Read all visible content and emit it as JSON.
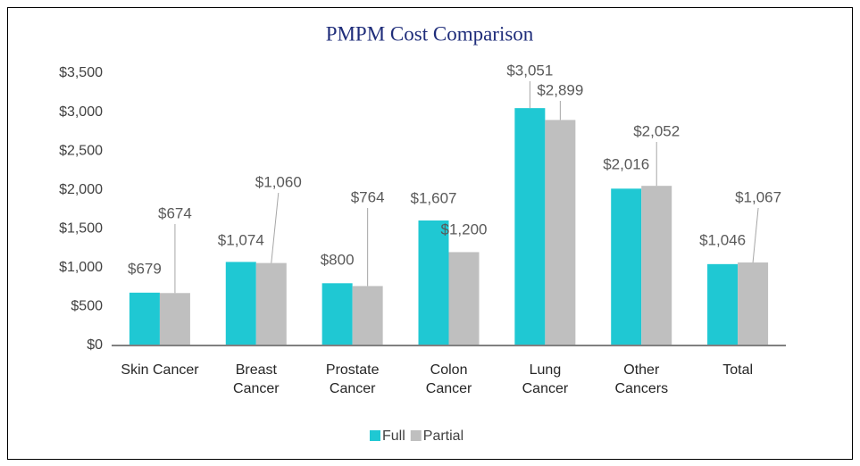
{
  "chart_data": {
    "type": "bar",
    "title": "PMPM Cost Comparison",
    "categories": [
      "Skin Cancer",
      "Breast\nCancer",
      "Prostate\nCancer",
      "Colon\nCancer",
      "Lung\nCancer",
      "Other\nCancers",
      "Total"
    ],
    "series": [
      {
        "name": "Full",
        "color": "#1fc8d3",
        "values": [
          679,
          1074,
          800,
          1607,
          3051,
          2016,
          1046
        ],
        "value_labels": [
          "$679",
          "$1,074",
          "$800",
          "$1,607",
          "$3,051",
          "$2,016",
          "$1,046"
        ]
      },
      {
        "name": "Partial",
        "color": "#bfbfbf",
        "values": [
          674,
          1060,
          764,
          1200,
          2899,
          2052,
          1067
        ],
        "value_labels": [
          "$674",
          "$1,060",
          "$764",
          "$1,200",
          "$2,899",
          "$2,052",
          "$1,067"
        ]
      }
    ],
    "ylim": [
      0,
      3500
    ],
    "yticks": [
      {
        "value": 0,
        "label": "$0"
      },
      {
        "value": 500,
        "label": "$500"
      },
      {
        "value": 1000,
        "label": "$1,000"
      },
      {
        "value": 1500,
        "label": "$1,500"
      },
      {
        "value": 2000,
        "label": "$2,000"
      },
      {
        "value": 2500,
        "label": "$2,500"
      },
      {
        "value": 3000,
        "label": "$3,000"
      },
      {
        "value": 3500,
        "label": "$3,500"
      }
    ],
    "grid": false,
    "legend": "bottom"
  }
}
